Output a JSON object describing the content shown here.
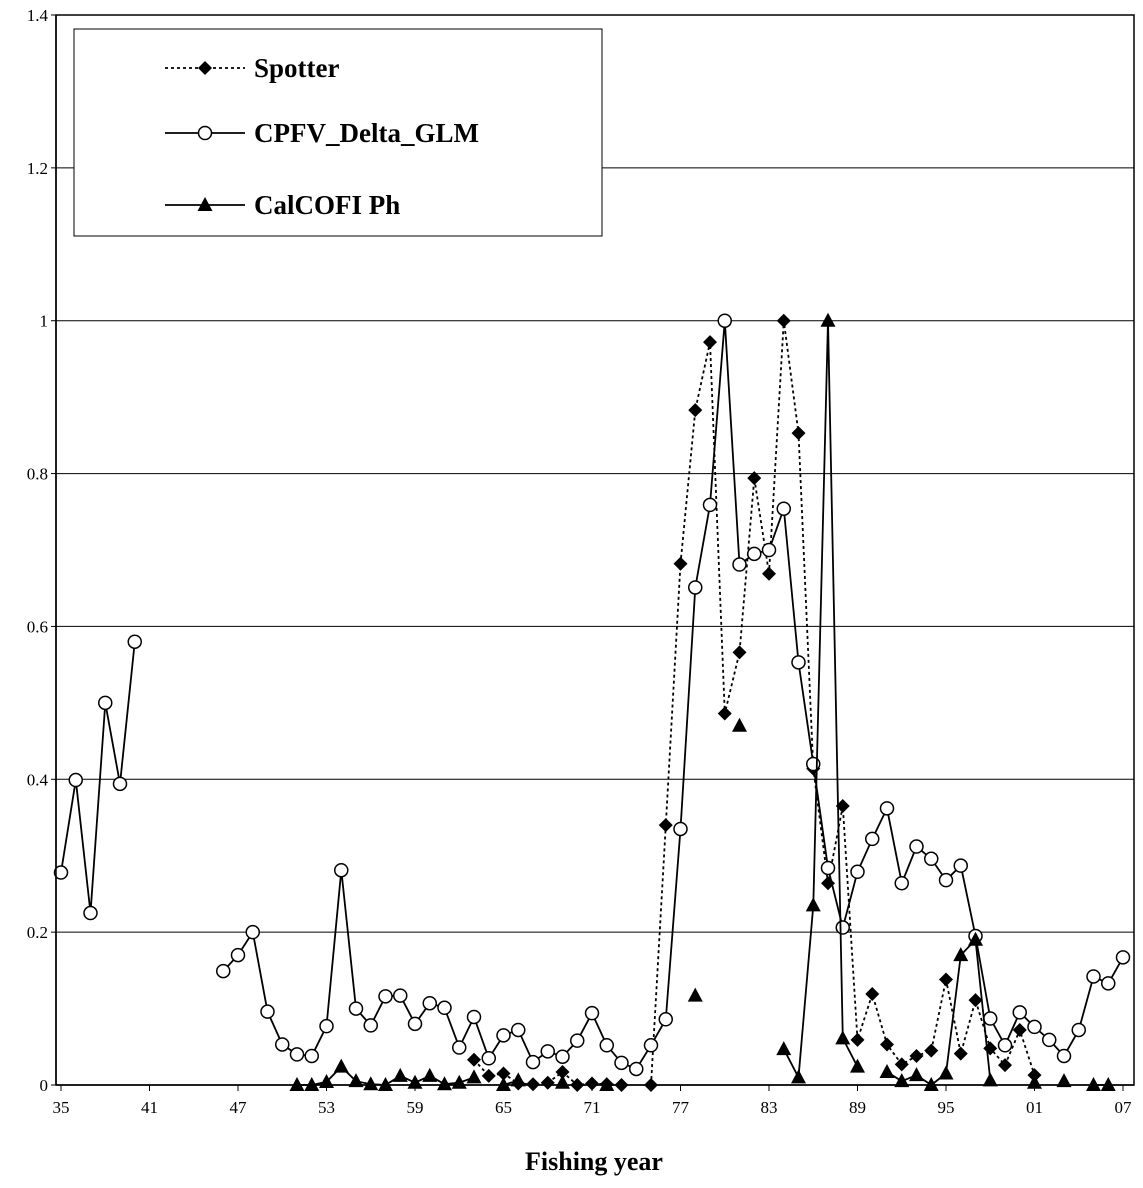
{
  "chart_data": {
    "type": "line",
    "title": "",
    "xlabel": "Fishing year",
    "ylabel": "",
    "ylim": [
      0,
      1.4
    ],
    "yticks": [
      "0",
      "0.2",
      "0.4",
      "0.6",
      "0.8",
      "1",
      "1.2",
      "1.4"
    ],
    "xlim": [
      1935,
      2007
    ],
    "xticks": [
      "35",
      "41",
      "47",
      "53",
      "59",
      "65",
      "71",
      "77",
      "83",
      "89",
      "95",
      "01",
      "07"
    ],
    "grid": "horizontal",
    "legend_position": "top-left",
    "series": [
      {
        "name": "Spotter",
        "marker": "diamond-filled",
        "line": "dotted",
        "x": [
          1963,
          1964,
          1965,
          1966,
          1967,
          1968,
          1969,
          1970,
          1971,
          1972,
          1973,
          1975,
          1976,
          1977,
          1978,
          1979,
          1980,
          1981,
          1982,
          1983,
          1984,
          1985,
          1986,
          1987,
          1988,
          1989,
          1990,
          1991,
          1992,
          1993,
          1994,
          1995,
          1996,
          1997,
          1998,
          1999,
          2000,
          2001
        ],
        "y": [
          0.033,
          0.012,
          0.015,
          0.002,
          0.001,
          0.003,
          0.017,
          0.0,
          0.002,
          0.001,
          0.0,
          0.0,
          0.34,
          0.682,
          0.883,
          0.972,
          0.486,
          0.566,
          0.794,
          0.669,
          1.0,
          0.853,
          0.414,
          0.264,
          0.365,
          0.059,
          0.119,
          0.053,
          0.027,
          0.038,
          0.045,
          0.138,
          0.041,
          0.111,
          0.048,
          0.026,
          0.072,
          0.013
        ]
      },
      {
        "name": "CPFV_Delta_GLM",
        "marker": "circle-open",
        "line": "solid",
        "x": [
          1935,
          1936,
          1937,
          1938,
          1939,
          1940,
          1946,
          1947,
          1948,
          1949,
          1950,
          1951,
          1952,
          1953,
          1954,
          1955,
          1956,
          1957,
          1958,
          1959,
          1960,
          1961,
          1962,
          1963,
          1964,
          1965,
          1966,
          1967,
          1968,
          1969,
          1970,
          1971,
          1972,
          1973,
          1974,
          1975,
          1976,
          1977,
          1978,
          1979,
          1980,
          1981,
          1982,
          1983,
          1984,
          1985,
          1986,
          1987,
          1988,
          1989,
          1990,
          1991,
          1992,
          1993,
          1994,
          1995,
          1996,
          1997,
          1998,
          1999,
          2000,
          2001,
          2002,
          2003,
          2004,
          2005,
          2006,
          2007
        ],
        "y": [
          0.278,
          0.399,
          0.225,
          0.5,
          0.394,
          0.58,
          0.149,
          0.17,
          0.2,
          0.096,
          0.053,
          0.04,
          0.038,
          0.077,
          0.281,
          0.1,
          0.078,
          0.116,
          0.117,
          0.08,
          0.107,
          0.101,
          0.049,
          0.089,
          0.035,
          0.065,
          0.072,
          0.03,
          0.044,
          0.037,
          0.058,
          0.094,
          0.052,
          0.029,
          0.021,
          0.052,
          0.086,
          0.335,
          0.651,
          0.759,
          1.0,
          0.681,
          0.695,
          0.7,
          0.754,
          0.553,
          0.42,
          0.284,
          0.206,
          0.279,
          0.322,
          0.362,
          0.264,
          0.312,
          0.296,
          0.268,
          0.287,
          0.195,
          0.087,
          0.052,
          0.095,
          0.076,
          0.059,
          0.038,
          0.072,
          0.142,
          0.133,
          0.167
        ]
      },
      {
        "name": "CalCOFI Ph",
        "marker": "triangle-filled",
        "line": "solid",
        "points": [
          [
            1951,
            0.0
          ],
          [
            1952,
            0.0
          ],
          [
            1953,
            0.004
          ],
          [
            1954,
            0.024
          ],
          [
            1955,
            0.005
          ],
          [
            1956,
            0.001
          ],
          [
            1957,
            0.0
          ],
          [
            1958,
            0.012
          ],
          [
            1959,
            0.003
          ],
          [
            1960,
            0.012
          ],
          [
            1961,
            0.001
          ],
          [
            1962,
            0.003
          ],
          [
            1963,
            0.01
          ],
          [
            1964,
            null
          ],
          [
            1965,
            0.0
          ],
          [
            1966,
            0.006
          ],
          [
            1967,
            null
          ],
          [
            1968,
            null
          ],
          [
            1969,
            0.003
          ],
          [
            1970,
            null
          ],
          [
            1971,
            null
          ],
          [
            1972,
            0.0
          ],
          [
            1973,
            null
          ],
          [
            1974,
            null
          ],
          [
            1975,
            null
          ],
          [
            1976,
            null
          ],
          [
            1977,
            null
          ],
          [
            1978,
            0.117
          ],
          [
            1979,
            null
          ],
          [
            1980,
            null
          ],
          [
            1981,
            0.47
          ],
          [
            1982,
            null
          ],
          [
            1983,
            null
          ],
          [
            1984,
            0.047
          ],
          [
            1985,
            0.01
          ],
          [
            1986,
            0.235
          ],
          [
            1987,
            1.0
          ],
          [
            1988,
            0.061
          ],
          [
            1989,
            0.024
          ],
          [
            1990,
            null
          ],
          [
            1991,
            0.017
          ],
          [
            1992,
            0.005
          ],
          [
            1993,
            0.013
          ],
          [
            1994,
            0.0
          ],
          [
            1995,
            0.015
          ],
          [
            1996,
            0.17
          ],
          [
            1997,
            0.19
          ],
          [
            1998,
            0.006
          ],
          [
            1999,
            null
          ],
          [
            2000,
            null
          ],
          [
            2001,
            0.003
          ],
          [
            2002,
            null
          ],
          [
            2003,
            0.005
          ],
          [
            2004,
            null
          ],
          [
            2005,
            0.0
          ],
          [
            2006,
            0.0
          ]
        ]
      }
    ]
  }
}
